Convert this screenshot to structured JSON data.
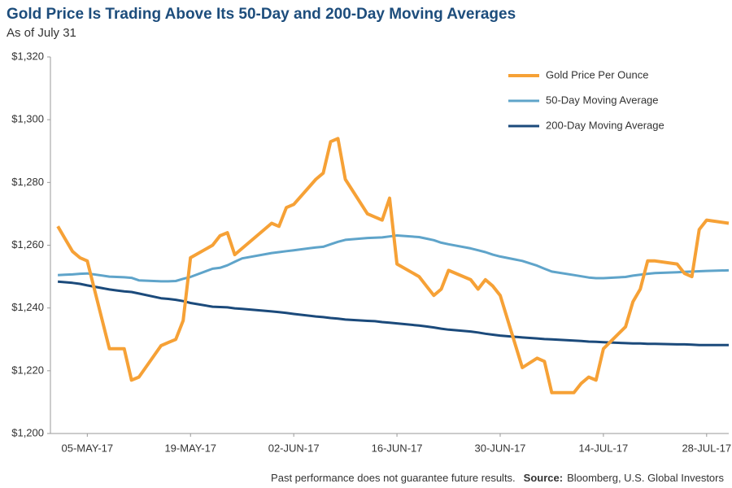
{
  "chart_data": {
    "type": "line",
    "title": "Gold Price Is Trading Above Its 50-Day and 200-Day Moving Averages",
    "subtitle": "As of July 31",
    "footnote": "Past performance does not guarantee future results.",
    "source_label": "Source:",
    "source": "Bloomberg, U.S. Global Investors",
    "legend": "upper right",
    "x": [
      "2017-05-01",
      "2017-05-02",
      "2017-05-03",
      "2017-05-04",
      "2017-05-05",
      "2017-05-08",
      "2017-05-09",
      "2017-05-10",
      "2017-05-11",
      "2017-05-12",
      "2017-05-15",
      "2017-05-16",
      "2017-05-17",
      "2017-05-18",
      "2017-05-19",
      "2017-05-22",
      "2017-05-23",
      "2017-05-24",
      "2017-05-25",
      "2017-05-26",
      "2017-05-30",
      "2017-05-31",
      "2017-06-01",
      "2017-06-02",
      "2017-06-05",
      "2017-06-06",
      "2017-06-07",
      "2017-06-08",
      "2017-06-09",
      "2017-06-12",
      "2017-06-13",
      "2017-06-14",
      "2017-06-15",
      "2017-06-16",
      "2017-06-19",
      "2017-06-20",
      "2017-06-21",
      "2017-06-22",
      "2017-06-23",
      "2017-06-26",
      "2017-06-27",
      "2017-06-28",
      "2017-06-29",
      "2017-06-30",
      "2017-07-03",
      "2017-07-05",
      "2017-07-06",
      "2017-07-07",
      "2017-07-10",
      "2017-07-11",
      "2017-07-12",
      "2017-07-13",
      "2017-07-14",
      "2017-07-17",
      "2017-07-18",
      "2017-07-19",
      "2017-07-20",
      "2017-07-21",
      "2017-07-24",
      "2017-07-25",
      "2017-07-26",
      "2017-07-27",
      "2017-07-28",
      "2017-07-31"
    ],
    "series": [
      {
        "name": "Gold Price Per Ounce",
        "color": "#f6a136",
        "values": [
          1266,
          1262,
          1258,
          1256,
          1255,
          1227,
          1227,
          1227,
          1217,
          1218,
          1228,
          1229,
          1230,
          1236,
          1256,
          1260,
          1263,
          1264,
          1257,
          1259,
          1267,
          1266,
          1272,
          1273,
          1281,
          1283,
          1293,
          1294,
          1281,
          1270,
          1269,
          1268,
          1275,
          1254,
          1250,
          1247,
          1244,
          1246,
          1252,
          1249,
          1246,
          1249,
          1247,
          1244,
          1221,
          1224,
          1223,
          1213,
          1213,
          1216,
          1218,
          1217,
          1227,
          1234,
          1242,
          1246,
          1255,
          1255,
          1254,
          1251,
          1250,
          1265,
          1268,
          1267
        ]
      },
      {
        "name": "50-Day Moving Average",
        "color": "#5fa4ca",
        "values": [
          1250.5,
          1250.6,
          1250.7,
          1250.9,
          1251,
          1250,
          1249.9,
          1249.8,
          1249.6,
          1248.8,
          1248.5,
          1248.5,
          1248.6,
          1249.3,
          1249.9,
          1252.5,
          1252.8,
          1253.6,
          1254.7,
          1255.8,
          1257.5,
          1257.8,
          1258.1,
          1258.4,
          1259.3,
          1259.5,
          1260.3,
          1261.1,
          1261.7,
          1262.3,
          1262.4,
          1262.5,
          1262.8,
          1263.1,
          1262.6,
          1262.1,
          1261.6,
          1260.8,
          1260.3,
          1259,
          1258.4,
          1257.8,
          1257,
          1256.4,
          1255,
          1253.5,
          1252.5,
          1251.6,
          1250.5,
          1250.1,
          1249.7,
          1249.5,
          1249.5,
          1249.9,
          1250.3,
          1250.6,
          1250.9,
          1251.1,
          1251.4,
          1251.5,
          1251.6,
          1251.7,
          1251.8,
          1252
        ]
      },
      {
        "name": "200-Day Moving Average",
        "color": "#1b4a7b",
        "values": [
          1248.4,
          1248.2,
          1248,
          1247.7,
          1247.2,
          1245.9,
          1245.6,
          1245.3,
          1245.1,
          1244.6,
          1243.1,
          1242.9,
          1242.6,
          1242.2,
          1241.6,
          1240.4,
          1240.3,
          1240.2,
          1239.9,
          1239.7,
          1238.9,
          1238.7,
          1238.4,
          1238.1,
          1237.3,
          1237.1,
          1236.8,
          1236.6,
          1236.3,
          1235.9,
          1235.8,
          1235.5,
          1235.3,
          1235.1,
          1234.4,
          1234.1,
          1233.8,
          1233.4,
          1233.1,
          1232.5,
          1232.2,
          1231.8,
          1231.5,
          1231.2,
          1230.6,
          1230.3,
          1230.1,
          1230,
          1229.6,
          1229.5,
          1229.3,
          1229.2,
          1229.1,
          1228.8,
          1228.7,
          1228.7,
          1228.6,
          1228.6,
          1228.4,
          1228.4,
          1228.3,
          1228.2,
          1228.2,
          1228.2
        ]
      }
    ],
    "xlim": [
      "2017-04-30",
      "2017-07-31"
    ],
    "xticks": [
      {
        "value": "2017-05-05",
        "label": "05-MAY-17"
      },
      {
        "value": "2017-05-19",
        "label": "19-MAY-17"
      },
      {
        "value": "2017-06-02",
        "label": "02-JUN-17"
      },
      {
        "value": "2017-06-16",
        "label": "16-JUN-17"
      },
      {
        "value": "2017-06-30",
        "label": "30-JUN-17"
      },
      {
        "value": "2017-07-14",
        "label": "14-JUL-17"
      },
      {
        "value": "2017-07-28",
        "label": "28-JUL-17"
      }
    ],
    "ylim": [
      1200,
      1320
    ],
    "yticks": [
      {
        "value": 1200,
        "label": "$1,200"
      },
      {
        "value": 1220,
        "label": "$1,220"
      },
      {
        "value": 1240,
        "label": "$1,240"
      },
      {
        "value": 1260,
        "label": "$1,260"
      },
      {
        "value": 1280,
        "label": "$1,280"
      },
      {
        "value": 1300,
        "label": "$1,300"
      },
      {
        "value": 1320,
        "label": "$1,320"
      }
    ],
    "grid": false
  }
}
